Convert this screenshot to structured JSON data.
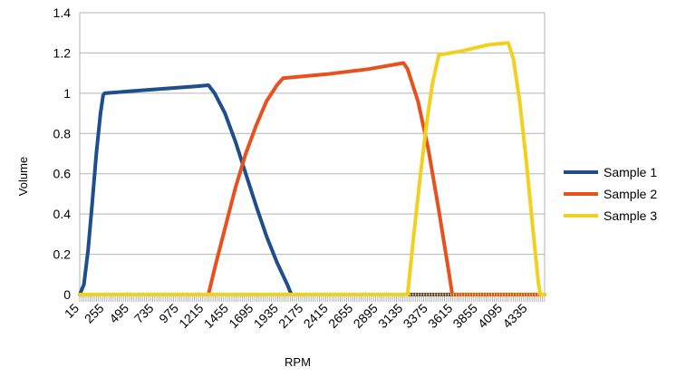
{
  "chart_data": {
    "type": "line",
    "title": "",
    "xlabel": "RPM",
    "ylabel": "Volume",
    "xlim": [
      15,
      4495
    ],
    "ylim": [
      0,
      1.4
    ],
    "yticks": [
      0,
      0.2,
      0.4,
      0.6,
      0.8,
      1,
      1.2,
      1.4
    ],
    "xtick_labels": [
      "15",
      "255",
      "495",
      "735",
      "975",
      "1215",
      "1455",
      "1695",
      "1935",
      "2175",
      "2415",
      "2655",
      "2895",
      "3135",
      "3375",
      "3615",
      "3855",
      "4095",
      "4335"
    ],
    "grid": "horizontal",
    "legend_position": "right",
    "series": [
      {
        "name": "Sample 1",
        "color": "#1f4e8c",
        "points": [
          [
            15,
            0
          ],
          [
            55,
            0.05
          ],
          [
            95,
            0.22
          ],
          [
            135,
            0.45
          ],
          [
            175,
            0.7
          ],
          [
            215,
            0.9
          ],
          [
            240,
            0.99
          ],
          [
            255,
            1.0
          ],
          [
            500,
            1.01
          ],
          [
            900,
            1.025
          ],
          [
            1150,
            1.035
          ],
          [
            1255,
            1.04
          ],
          [
            1315,
            1.0
          ],
          [
            1415,
            0.9
          ],
          [
            1515,
            0.76
          ],
          [
            1615,
            0.6
          ],
          [
            1715,
            0.44
          ],
          [
            1815,
            0.29
          ],
          [
            1915,
            0.16
          ],
          [
            2015,
            0.05
          ],
          [
            2055,
            0.0
          ],
          [
            4495,
            0
          ]
        ]
      },
      {
        "name": "Sample 2",
        "color": "#e8501f",
        "points": [
          [
            15,
            0
          ],
          [
            1255,
            0
          ],
          [
            1315,
            0.13
          ],
          [
            1415,
            0.33
          ],
          [
            1515,
            0.53
          ],
          [
            1615,
            0.7
          ],
          [
            1715,
            0.84
          ],
          [
            1815,
            0.96
          ],
          [
            1915,
            1.04
          ],
          [
            1975,
            1.075
          ],
          [
            2400,
            1.095
          ],
          [
            2800,
            1.12
          ],
          [
            3135,
            1.15
          ],
          [
            3175,
            1.12
          ],
          [
            3275,
            0.96
          ],
          [
            3375,
            0.72
          ],
          [
            3475,
            0.42
          ],
          [
            3575,
            0.1
          ],
          [
            3605,
            0.0
          ],
          [
            4495,
            0
          ]
        ]
      },
      {
        "name": "Sample 3",
        "color": "#f2d01f",
        "points": [
          [
            15,
            0
          ],
          [
            3175,
            0
          ],
          [
            3235,
            0.3
          ],
          [
            3295,
            0.58
          ],
          [
            3355,
            0.84
          ],
          [
            3415,
            1.05
          ],
          [
            3475,
            1.19
          ],
          [
            3700,
            1.21
          ],
          [
            3950,
            1.24
          ],
          [
            4145,
            1.25
          ],
          [
            4195,
            1.17
          ],
          [
            4255,
            0.96
          ],
          [
            4315,
            0.68
          ],
          [
            4375,
            0.36
          ],
          [
            4435,
            0.06
          ],
          [
            4455,
            0.0
          ],
          [
            4495,
            0
          ]
        ]
      }
    ]
  }
}
